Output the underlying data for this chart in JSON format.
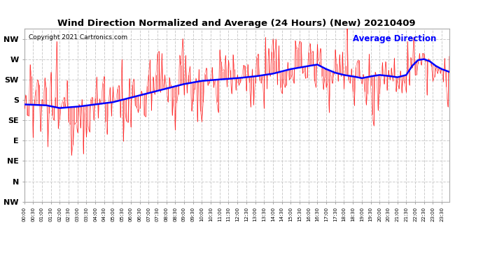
{
  "title": "Wind Direction Normalized and Average (24 Hours) (New) 20210409",
  "copyright": "Copyright 2021 Cartronics.com",
  "legend_label": "Average Direction",
  "bg_color": "#ffffff",
  "plot_bg_color": "#ffffff",
  "grid_color": "#cccccc",
  "red_color": "#ff0000",
  "blue_color": "#0000ff",
  "ytick_labels": [
    "NW",
    "W",
    "SW",
    "S",
    "SE",
    "E",
    "NE",
    "N",
    "NW"
  ],
  "ytick_values": [
    315,
    270,
    225,
    180,
    135,
    90,
    45,
    0,
    -45
  ],
  "ylim": [
    -45,
    337
  ],
  "num_points": 288,
  "tick_step": 6
}
